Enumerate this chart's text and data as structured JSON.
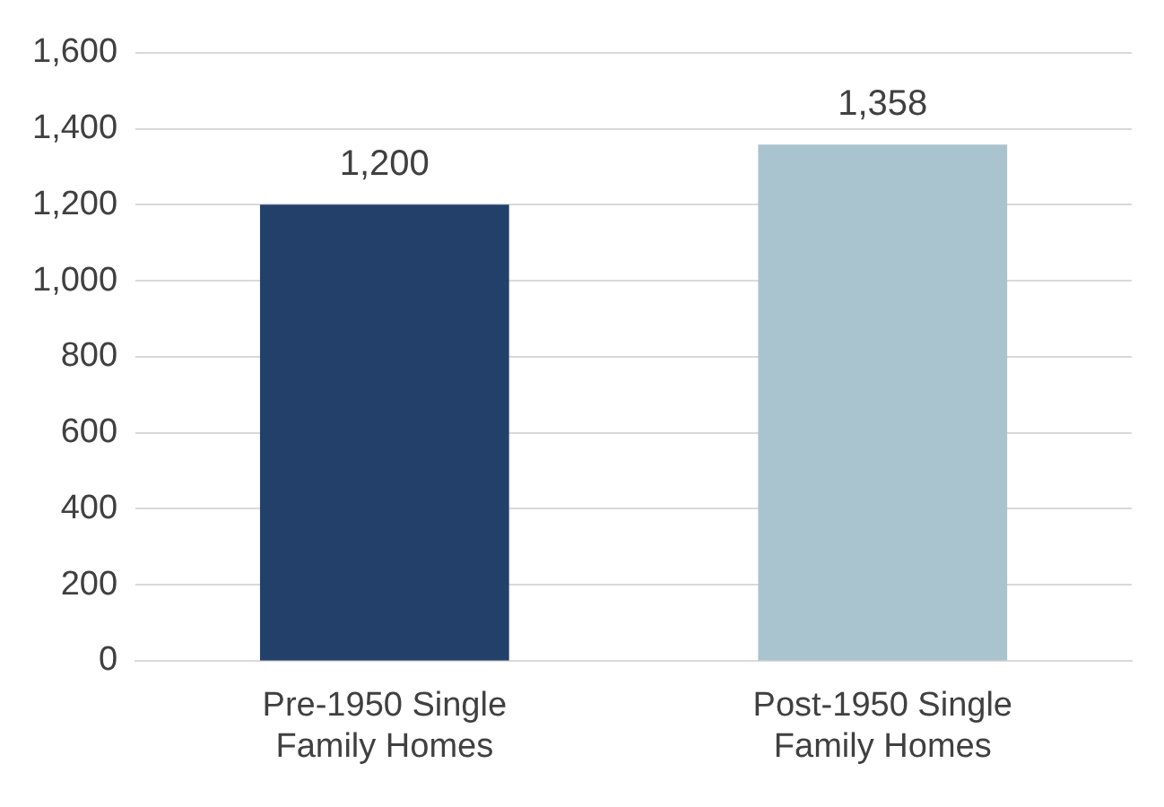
{
  "chart_data": {
    "type": "bar",
    "categories": [
      "Pre-1950 Single Family Homes",
      "Post-1950 Single Family Homes"
    ],
    "values": [
      1200,
      1358
    ],
    "value_labels": [
      "1,200",
      "1,358"
    ],
    "colors": [
      "#22406a",
      "#a9c3cf"
    ],
    "ylim": [
      0,
      1600
    ],
    "yticks": [
      0,
      200,
      400,
      600,
      800,
      {
        "value": 1000,
        "label": "1,000"
      },
      {
        "value": 1200,
        "label": "1,200"
      },
      {
        "value": 1400,
        "label": "1,400"
      },
      {
        "value": 1600,
        "label": "1,600"
      }
    ],
    "grid": "y",
    "legend": false
  }
}
